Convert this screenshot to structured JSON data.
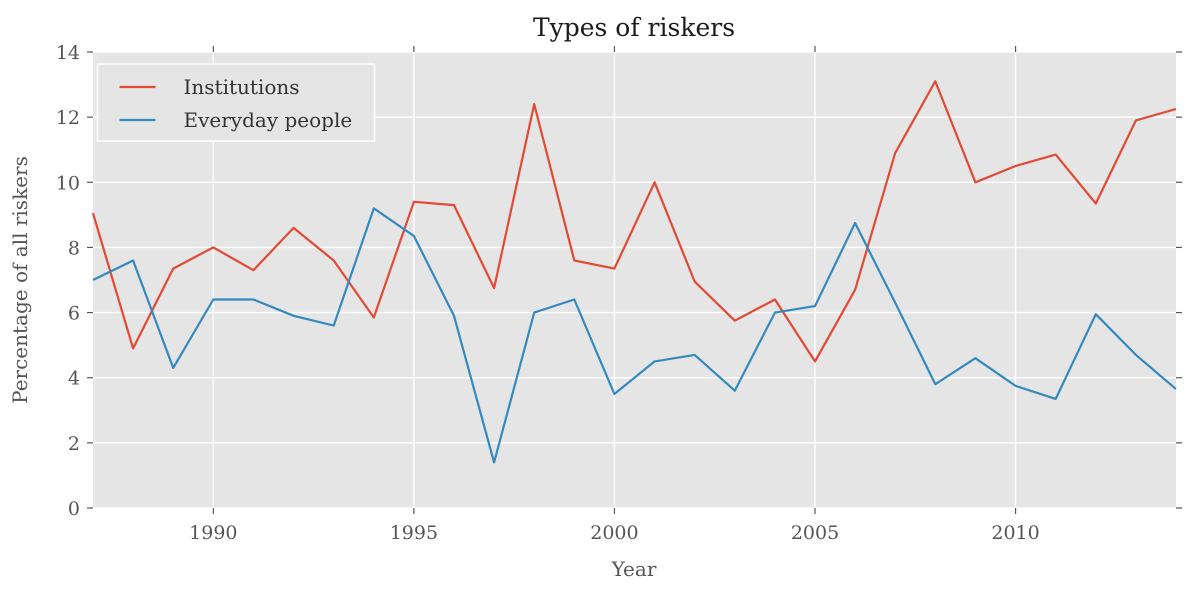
{
  "page": {
    "background": "#ffffff"
  },
  "chart_data": {
    "type": "line",
    "title": "Types of riskers",
    "xlabel": "Year",
    "ylabel": "Percentage of all riskers",
    "xlim": [
      1987,
      2014
    ],
    "ylim": [
      0,
      14
    ],
    "xticks": [
      1990,
      1995,
      2000,
      2005,
      2010
    ],
    "yticks": [
      0,
      2,
      4,
      6,
      8,
      10,
      12,
      14
    ],
    "grid": true,
    "legend_position": "upper-left",
    "plot_background": "#e5e5e5",
    "grid_color": "#ffffff",
    "tick_color": "#555555",
    "x": [
      1987,
      1988,
      1989,
      1990,
      1991,
      1992,
      1993,
      1994,
      1995,
      1996,
      1997,
      1998,
      1999,
      2000,
      2001,
      2002,
      2003,
      2004,
      2005,
      2006,
      2007,
      2008,
      2009,
      2010,
      2011,
      2012,
      2013,
      2014
    ],
    "series": [
      {
        "name": "Institutions",
        "color": "#e24a33",
        "values": [
          9.05,
          4.9,
          7.35,
          8.0,
          7.3,
          8.6,
          7.6,
          5.85,
          9.4,
          9.3,
          6.75,
          12.4,
          7.6,
          7.35,
          10.0,
          6.95,
          5.75,
          6.4,
          4.5,
          6.7,
          10.9,
          13.1,
          10.0,
          10.5,
          10.85,
          9.35,
          11.9,
          12.25
        ]
      },
      {
        "name": "Everyday people",
        "color": "#348abd",
        "values": [
          7.0,
          7.6,
          4.3,
          6.4,
          6.4,
          5.9,
          5.6,
          9.2,
          8.35,
          5.9,
          1.4,
          6.0,
          6.4,
          3.5,
          4.5,
          4.7,
          3.6,
          6.0,
          6.2,
          8.75,
          6.3,
          3.8,
          4.6,
          3.75,
          3.35,
          5.95,
          4.7,
          3.65
        ]
      }
    ]
  }
}
